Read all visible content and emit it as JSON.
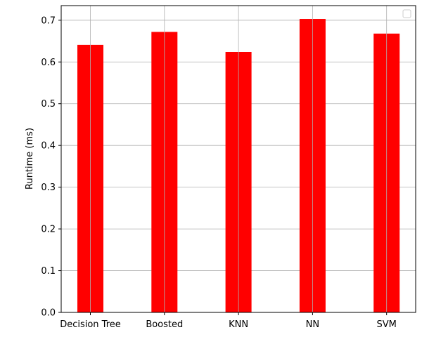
{
  "chart_data": {
    "type": "bar",
    "categories": [
      "Decision Tree",
      "Boosted",
      "KNN",
      "NN",
      "SVM"
    ],
    "values": [
      0.641,
      0.672,
      0.624,
      0.703,
      0.668
    ],
    "ylabel": "Runtime (ms)",
    "ylim": [
      0,
      0.735
    ],
    "yticks": [
      "0.0",
      "0.1",
      "0.2",
      "0.3",
      "0.4",
      "0.5",
      "0.6",
      "0.7"
    ],
    "grid": true,
    "legend_placement": "top-right",
    "bar_color": "#ff0000",
    "grid_color": "#b0b0b0"
  }
}
